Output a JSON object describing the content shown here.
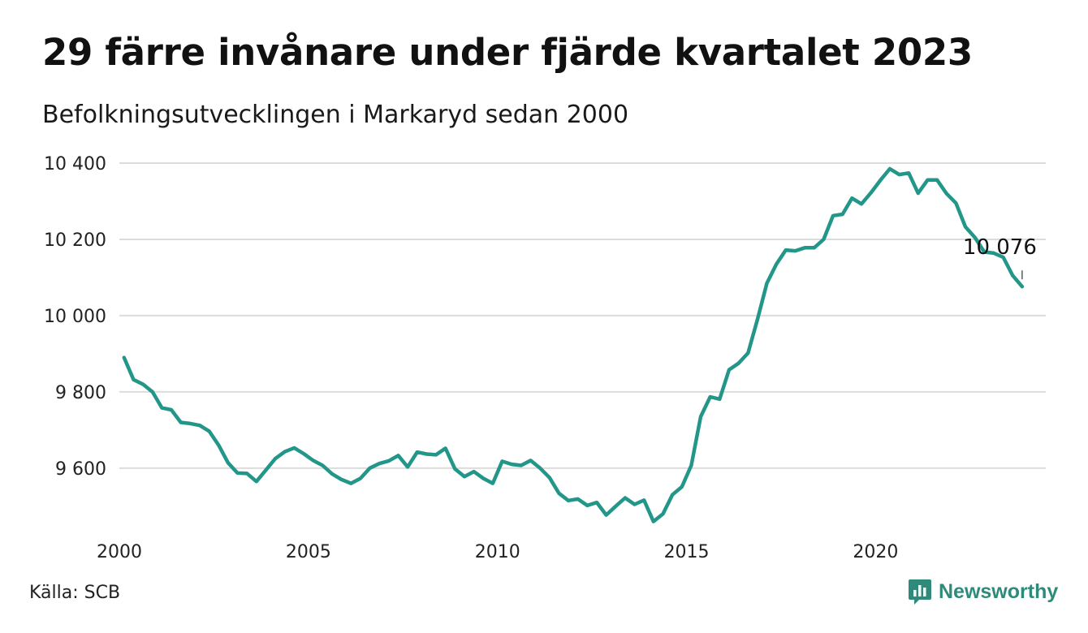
{
  "header": {
    "title": "29 färre invånare under fjärde kvartalet 2023",
    "subtitle": "Befolkningsutvecklingen i Markaryd sedan 2000"
  },
  "footer": {
    "source": "Källa: SCB",
    "brand": "Newsworthy",
    "brand_icon": "newsworthy-logo-icon"
  },
  "colors": {
    "line": "#23968a",
    "grid": "#dcdcdc",
    "brand": "#2e8b7b"
  },
  "chart_data": {
    "type": "line",
    "title": "29 färre invånare under fjärde kvartalet 2023",
    "subtitle": "Befolkningsutvecklingen i Markaryd sedan 2000",
    "xlabel": "",
    "ylabel": "",
    "x_ticks": [
      2000,
      2005,
      2010,
      2015,
      2020
    ],
    "x_tick_labels": [
      "2000",
      "2005",
      "2010",
      "2015",
      "2020"
    ],
    "y_ticks": [
      9600,
      9800,
      10000,
      10200,
      10400
    ],
    "y_tick_labels": [
      "9 600",
      "9 800",
      "10 000",
      "10 200",
      "10 400"
    ],
    "xlim": [
      2000.0,
      2024.5
    ],
    "ylim": [
      9440,
      10400
    ],
    "grid": true,
    "last_value_label": "10 076",
    "series": [
      {
        "x": [
          2000.125,
          2000.375,
          2000.625,
          2000.875,
          2001.125,
          2001.375,
          2001.625,
          2001.875,
          2002.125,
          2002.375,
          2002.625,
          2002.875,
          2003.125,
          2003.375,
          2003.625,
          2003.875,
          2004.125,
          2004.375,
          2004.625,
          2004.875,
          2005.125,
          2005.375,
          2005.625,
          2005.875,
          2006.125,
          2006.375,
          2006.625,
          2006.875,
          2007.125,
          2007.375,
          2007.625,
          2007.875,
          2008.125,
          2008.375,
          2008.625,
          2008.875,
          2009.125,
          2009.375,
          2009.625,
          2009.875,
          2010.125,
          2010.375,
          2010.625,
          2010.875,
          2011.125,
          2011.375,
          2011.625,
          2011.875,
          2012.125,
          2012.375,
          2012.625,
          2012.875,
          2013.125,
          2013.375,
          2013.625,
          2013.875,
          2014.125,
          2014.375,
          2014.625,
          2014.875,
          2015.125,
          2015.375,
          2015.625,
          2015.875,
          2016.125,
          2016.375,
          2016.625,
          2016.875,
          2017.125,
          2017.375,
          2017.625,
          2017.875,
          2018.125,
          2018.375,
          2018.625,
          2018.875,
          2019.125,
          2019.375,
          2019.625,
          2019.875,
          2020.125,
          2020.375,
          2020.625,
          2020.875,
          2021.125,
          2021.375,
          2021.625,
          2021.875,
          2022.125,
          2022.375,
          2022.625,
          2022.875,
          2023.125,
          2023.375,
          2023.625,
          2023.875
        ],
        "values": [
          9890,
          9832,
          9820,
          9800,
          9758,
          9753,
          9720,
          9717,
          9712,
          9697,
          9660,
          9614,
          9587,
          9586,
          9565,
          9595,
          9625,
          9643,
          9653,
          9638,
          9620,
          9607,
          9585,
          9570,
          9560,
          9573,
          9600,
          9612,
          9619,
          9633,
          9603,
          9642,
          9637,
          9635,
          9652,
          9598,
          9578,
          9591,
          9573,
          9560,
          9618,
          9610,
          9607,
          9620,
          9600,
          9575,
          9534,
          9515,
          9519,
          9502,
          9510,
          9477,
          9500,
          9522,
          9505,
          9516,
          9460,
          9480,
          9530,
          9551,
          9607,
          9735,
          9787,
          9781,
          9858,
          9875,
          9902,
          9990,
          10085,
          10135,
          10172,
          10170,
          10178,
          10178,
          10200,
          10262,
          10266,
          10308,
          10293,
          10322,
          10355,
          10385,
          10370,
          10374,
          10321,
          10356,
          10356,
          10320,
          10295,
          10233,
          10205,
          10167,
          10164,
          10153,
          10105,
          10076
        ]
      }
    ]
  }
}
